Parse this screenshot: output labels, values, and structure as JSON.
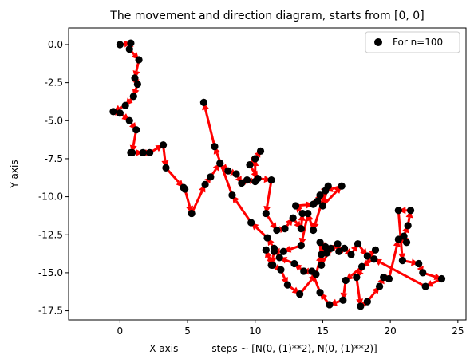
{
  "chart_data": {
    "type": "scatter",
    "title": "The movement and direction diagram, starts from [0, 0]",
    "xlabel": "X axis           steps ~ [N(0, (1)**2), N(0, (1)**2)]",
    "ylabel": "Y axis",
    "xlim": [
      -3.8,
      25.6
    ],
    "ylim": [
      -18.1,
      1.1
    ],
    "xticks": [
      "0",
      "5",
      "10",
      "15",
      "20",
      "25"
    ],
    "xtick_values": [
      0,
      5,
      10,
      15,
      20,
      25
    ],
    "yticks": [
      "0.0",
      "-2.5",
      "-5.0",
      "-7.5",
      "-10.0",
      "-12.5",
      "-15.0",
      "-17.5"
    ],
    "ytick_values": [
      0,
      -2.5,
      -5,
      -7.5,
      -10,
      -12.5,
      -15,
      -17.5
    ],
    "grid": false,
    "legend": {
      "placement": "top-right",
      "entries": [
        "For n=100"
      ]
    },
    "point_color": "#000000",
    "arrow_color": "#ff0000",
    "series": [
      {
        "name": "For n=100",
        "x": [
          0,
          0.8,
          0.7,
          1.4,
          1.1,
          1.3,
          1.0,
          0.4,
          -0.5,
          0,
          0.7,
          1.2,
          0.9,
          0.8,
          1.7,
          2.2,
          3.2,
          3.4,
          4.7,
          4.8,
          5.3,
          6.3,
          6.7,
          7.4,
          8.0,
          8.6,
          9.0,
          9.4,
          10.0,
          10.0,
          10.4,
          9.6,
          10.2,
          11.2,
          10.8,
          11.6,
          12.2,
          12.8,
          13.4,
          13.5,
          13.0,
          14.3,
          14.6,
          14.8,
          15.4,
          15.0,
          16.4,
          15.2,
          14.3,
          13.9,
          13.4,
          12.1,
          11.4,
          11.2,
          10.8,
          11.3,
          11.9,
          12.4,
          13.3,
          14.5,
          14.9,
          15.2,
          14.8,
          14.9,
          15.6,
          15.3,
          16.1,
          16.2,
          16.6,
          17.1,
          17.6,
          18.3,
          18.9,
          17.5,
          17.8,
          18.3,
          19.2,
          19.5,
          19.9,
          20.6,
          21.2,
          21.0,
          21.3,
          21.5,
          20.6,
          20.9,
          22.1,
          22.4,
          23.8,
          22.6,
          18.8,
          17.9,
          16.7,
          16.5,
          15.5,
          14.8,
          14.2,
          13.6,
          12.9,
          11.8,
          11.4,
          10.9,
          9.7,
          8.3,
          7.0,
          6.2
        ],
        "y": [
          0,
          0.1,
          -0.3,
          -1.0,
          -2.2,
          -2.6,
          -3.4,
          -4.0,
          -4.4,
          -4.5,
          -5.0,
          -5.6,
          -7.1,
          -7.1,
          -7.1,
          -7.1,
          -6.6,
          -8.1,
          -9.4,
          -9.5,
          -11.1,
          -9.2,
          -8.7,
          -7.8,
          -8.3,
          -8.5,
          -9.1,
          -8.9,
          -9.0,
          -7.5,
          -7.0,
          -7.9,
          -8.8,
          -8.9,
          -11.1,
          -12.2,
          -12.1,
          -11.4,
          -12.1,
          -11.1,
          -10.6,
          -10.5,
          -10.3,
          -9.9,
          -9.3,
          -10.6,
          -9.3,
          -9.6,
          -12.2,
          -11.1,
          -13.2,
          -13.6,
          -13.6,
          -14.5,
          -13.5,
          -14.5,
          -14.8,
          -15.8,
          -16.4,
          -15.1,
          -13.8,
          -13.3,
          -13.0,
          -14.5,
          -13.4,
          -13.7,
          -13.1,
          -13.6,
          -13.4,
          -13.8,
          -13.1,
          -13.9,
          -13.5,
          -15.3,
          -17.2,
          -16.9,
          -15.9,
          -15.3,
          -15.4,
          -12.8,
          -13.0,
          -12.6,
          -11.9,
          -10.9,
          -10.9,
          -14.2,
          -14.4,
          -15.0,
          -15.4,
          -15.9,
          -14.1,
          -14.6,
          -15.5,
          -16.8,
          -17.1,
          -16.3,
          -14.9,
          -14.9,
          -14.4,
          -14.0,
          -13.4,
          -12.7,
          -11.7,
          -9.9,
          -6.7,
          -3.8
        ]
      }
    ]
  }
}
